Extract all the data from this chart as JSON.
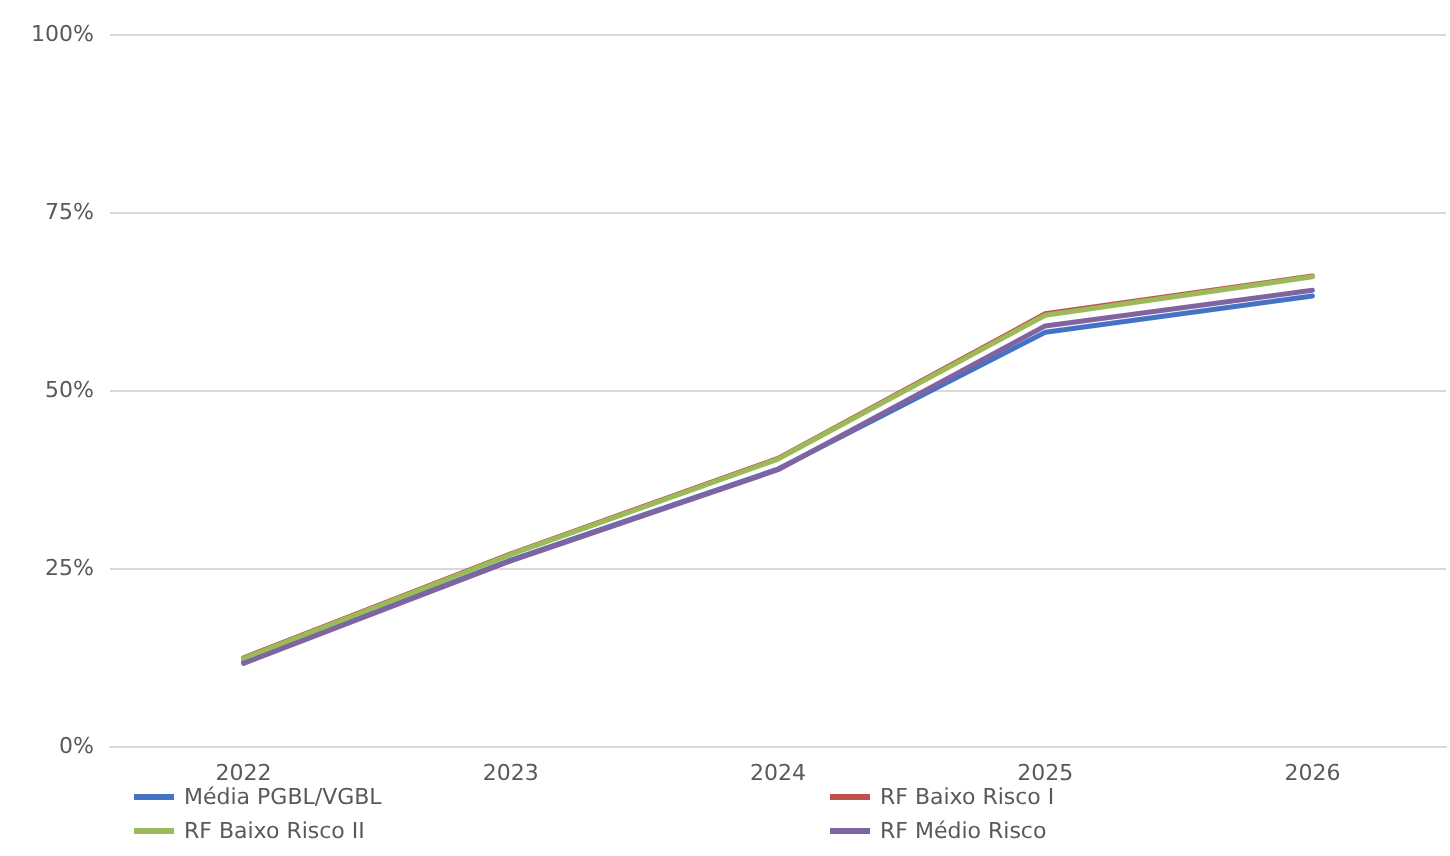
{
  "chart_data": {
    "type": "line",
    "categories": [
      "2022",
      "2023",
      "2024",
      "2025",
      "2026"
    ],
    "series": [
      {
        "name": "Média PGBL/VGBL",
        "color": "#4472c4",
        "values": [
          11.8,
          26.1,
          38.9,
          58.1,
          63.2
        ]
      },
      {
        "name": "RF Baixo Risco I",
        "color": "#c0504d",
        "values": [
          12.4,
          27.0,
          40.4,
          60.7,
          66.0
        ]
      },
      {
        "name": "RF Baixo Risco II",
        "color": "#9bbb59",
        "values": [
          12.3,
          26.9,
          40.3,
          60.5,
          65.9
        ]
      },
      {
        "name": "RF Médio Risco",
        "color": "#8064a2",
        "values": [
          11.6,
          26.0,
          38.8,
          59.0,
          64.0
        ]
      }
    ],
    "ylim": [
      0,
      100
    ],
    "yticks": [
      {
        "value": 0,
        "label": "0%"
      },
      {
        "value": 25,
        "label": "25%"
      },
      {
        "value": 50,
        "label": "50%"
      },
      {
        "value": 75,
        "label": "75%"
      },
      {
        "value": 100,
        "label": "100%"
      }
    ],
    "grid": "y",
    "legend": "bottom",
    "marker": "none",
    "line_style": "solid"
  }
}
